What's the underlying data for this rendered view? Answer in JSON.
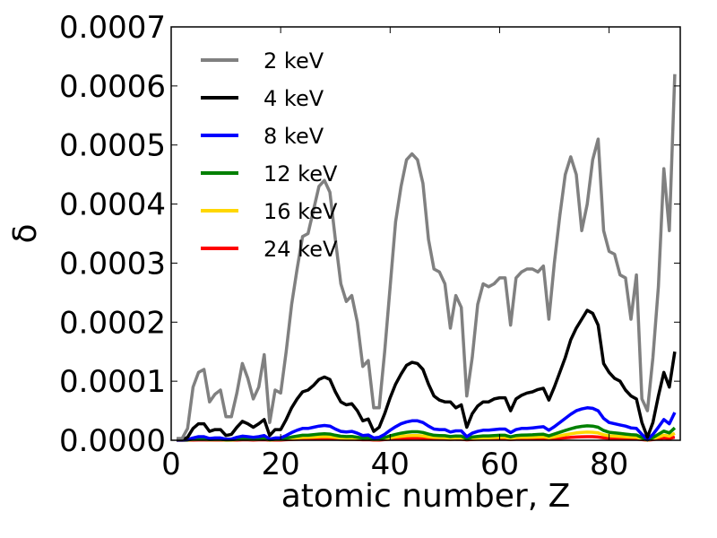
{
  "chart_data": {
    "type": "line",
    "xlabel": "atomic number, Z",
    "ylabel": "δ",
    "xlim": [
      0,
      93
    ],
    "ylim": [
      0,
      0.0007
    ],
    "x_ticks": [
      0,
      20,
      40,
      60,
      80
    ],
    "x_tick_labels": [
      "0",
      "20",
      "40",
      "60",
      "80"
    ],
    "y_ticks": [
      0,
      0.0001,
      0.0002,
      0.0003,
      0.0004,
      0.0005,
      0.0006,
      0.0007
    ],
    "y_tick_labels": [
      "0.0000",
      "0.0001",
      "0.0002",
      "0.0003",
      "0.0004",
      "0.0005",
      "0.0006",
      "0.0007"
    ],
    "grid": false,
    "legend_position": "top-left",
    "x": [
      1,
      2,
      3,
      4,
      5,
      6,
      7,
      8,
      9,
      10,
      11,
      12,
      13,
      14,
      15,
      16,
      17,
      18,
      19,
      20,
      21,
      22,
      23,
      24,
      25,
      26,
      27,
      28,
      29,
      30,
      31,
      32,
      33,
      34,
      35,
      36,
      37,
      38,
      39,
      40,
      41,
      42,
      43,
      44,
      45,
      46,
      47,
      48,
      49,
      50,
      51,
      52,
      53,
      54,
      55,
      56,
      57,
      58,
      59,
      60,
      61,
      62,
      63,
      64,
      65,
      66,
      67,
      68,
      69,
      70,
      71,
      72,
      73,
      74,
      75,
      76,
      77,
      78,
      79,
      80,
      81,
      82,
      83,
      84,
      85,
      86,
      87,
      88,
      89,
      90,
      91,
      92
    ],
    "series": [
      {
        "name": "2 keV",
        "color": "#808080",
        "values": [
          3e-06,
          3e-06,
          2e-05,
          9e-05,
          0.000115,
          0.00012,
          6.5e-05,
          7.8e-05,
          8.5e-05,
          4e-05,
          4e-05,
          8e-05,
          0.00013,
          0.000105,
          7e-05,
          9e-05,
          0.000145,
          3e-05,
          8.5e-05,
          8e-05,
          0.00015,
          0.00023,
          0.00029,
          0.000345,
          0.00035,
          0.00039,
          0.00043,
          0.00044,
          0.00042,
          0.00034,
          0.000265,
          0.000235,
          0.000245,
          0.0002,
          0.000125,
          0.000135,
          5.5e-05,
          5.5e-05,
          0.00015,
          0.00026,
          0.00037,
          0.00043,
          0.000475,
          0.000485,
          0.000475,
          0.000435,
          0.00034,
          0.00029,
          0.000285,
          0.000265,
          0.00019,
          0.000245,
          0.000225,
          7.5e-05,
          0.00014,
          0.00023,
          0.000265,
          0.00026,
          0.000265,
          0.000275,
          0.000275,
          0.000195,
          0.000275,
          0.000285,
          0.00029,
          0.00029,
          0.000285,
          0.000295,
          0.000205,
          0.0003,
          0.00038,
          0.00045,
          0.00048,
          0.00045,
          0.000355,
          0.0004,
          0.000475,
          0.00051,
          0.000355,
          0.00032,
          0.000315,
          0.00028,
          0.000275,
          0.000205,
          0.00028,
          7e-05,
          5e-05,
          0.00014,
          0.00026,
          0.00046,
          0.000355,
          0.00062
        ]
      },
      {
        "name": "4 keV",
        "color": "#000000",
        "values": [
          1e-06,
          1e-06,
          5e-06,
          2e-05,
          2.8e-05,
          2.8e-05,
          1.5e-05,
          1.8e-05,
          1.8e-05,
          8e-06,
          1e-05,
          2.2e-05,
          3.2e-05,
          2.8e-05,
          2.2e-05,
          2.8e-05,
          3.5e-05,
          8e-06,
          1.8e-05,
          1.8e-05,
          3.5e-05,
          5.5e-05,
          7e-05,
          8.2e-05,
          8.5e-05,
          9.3e-05,
          0.000103,
          0.000107,
          0.000103,
          8.2e-05,
          6.5e-05,
          6e-05,
          6.2e-05,
          5e-05,
          3.3e-05,
          3.6e-05,
          1.5e-05,
          2.2e-05,
          4.5e-05,
          7.2e-05,
          9.5e-05,
          0.000112,
          0.000127,
          0.000132,
          0.00013,
          0.00012,
          9.5e-05,
          7.5e-05,
          6.8e-05,
          6.5e-05,
          6.5e-05,
          5.5e-05,
          6e-05,
          2.2e-05,
          4.5e-05,
          5.8e-05,
          6.5e-05,
          6.5e-05,
          7e-05,
          7.2e-05,
          7.2e-05,
          5e-05,
          7e-05,
          7.6e-05,
          8e-05,
          8.2e-05,
          8.6e-05,
          8.8e-05,
          6.8e-05,
          9e-05,
          0.000115,
          0.00014,
          0.00017,
          0.00019,
          0.000205,
          0.00022,
          0.000215,
          0.000195,
          0.00013,
          0.000115,
          0.000105,
          0.0001,
          8.5e-05,
          7.5e-05,
          7e-05,
          3e-05,
          5e-06,
          3e-05,
          7.5e-05,
          0.000115,
          9e-05,
          0.00015
        ]
      },
      {
        "name": "8 keV",
        "color": "#0000ff",
        "values": [
          3e-07,
          3e-07,
          1e-06,
          4e-06,
          6e-06,
          6e-06,
          3e-06,
          4e-06,
          4e-06,
          2e-06,
          2e-06,
          5e-06,
          7e-06,
          6e-06,
          5e-06,
          6e-06,
          8e-06,
          2e-06,
          4e-06,
          4e-06,
          8e-06,
          1.3e-05,
          1.7e-05,
          2e-05,
          2e-05,
          2.2e-05,
          2.4e-05,
          2.5e-05,
          2.4e-05,
          1.9e-05,
          1.5e-05,
          1.4e-05,
          1.5e-05,
          1.2e-05,
          8e-06,
          9e-06,
          4e-06,
          5e-06,
          1e-05,
          1.7e-05,
          2.3e-05,
          2.8e-05,
          3.1e-05,
          3.3e-05,
          3.3e-05,
          3e-05,
          2.4e-05,
          1.9e-05,
          1.8e-05,
          1.8e-05,
          1.4e-05,
          1.6e-05,
          1.6e-05,
          6e-06,
          1.2e-05,
          1.5e-05,
          1.7e-05,
          1.7e-05,
          1.8e-05,
          1.9e-05,
          1.9e-05,
          1.3e-05,
          1.8e-05,
          2e-05,
          2e-05,
          2.1e-05,
          2.2e-05,
          2.3e-05,
          1.7e-05,
          2.3e-05,
          3e-05,
          3.7e-05,
          4.4e-05,
          5e-05,
          5.3e-05,
          5.5e-05,
          5.4e-05,
          5e-05,
          3.7e-05,
          3e-05,
          2.8e-05,
          2.6e-05,
          2.4e-05,
          2.1e-05,
          2e-05,
          1e-05,
          1e-06,
          1e-05,
          2.2e-05,
          3.5e-05,
          2.8e-05,
          4.7e-05
        ]
      },
      {
        "name": "12 keV",
        "color": "#008000",
        "values": [
          1e-07,
          1e-07,
          5e-07,
          2e-06,
          2.5e-06,
          2.5e-06,
          1.3e-06,
          1.7e-06,
          1.7e-06,
          8e-07,
          9e-07,
          2e-06,
          3e-06,
          2.7e-06,
          2e-06,
          2.7e-06,
          3.5e-06,
          8e-07,
          1.8e-06,
          1.8e-06,
          3.5e-06,
          5.5e-06,
          7e-06,
          8.5e-06,
          8.5e-06,
          9.5e-06,
          1.05e-05,
          1.1e-05,
          1.05e-05,
          8.5e-06,
          6.8e-06,
          6.2e-06,
          6.5e-06,
          5.2e-06,
          3.6e-06,
          4e-06,
          1.7e-06,
          2.2e-06,
          4.5e-06,
          7.5e-06,
          1e-05,
          1.2e-05,
          1.35e-05,
          1.45e-05,
          1.45e-05,
          1.32e-05,
          1.05e-05,
          8.5e-06,
          8e-06,
          7.8e-06,
          6.2e-06,
          7.2e-06,
          7e-06,
          2.6e-06,
          5.5e-06,
          6.5e-06,
          7.5e-06,
          7.5e-06,
          8e-06,
          8.5e-06,
          8.5e-06,
          5.8e-06,
          8e-06,
          8.8e-06,
          9e-06,
          9.3e-06,
          9.8e-06,
          1.02e-05,
          7.5e-06,
          1.05e-05,
          1.35e-05,
          1.65e-05,
          1.95e-05,
          2.2e-05,
          2.35e-05,
          2.45e-05,
          2.4e-05,
          2.2e-05,
          1.65e-05,
          1.35e-05,
          1.25e-05,
          1.15e-05,
          1.05e-05,
          9.5e-06,
          9e-06,
          4.5e-06,
          5e-07,
          4.5e-06,
          1e-05,
          1.55e-05,
          1.25e-05,
          2.1e-05
        ]
      },
      {
        "name": "16 keV",
        "color": "#ffd700",
        "values": [
          5e-08,
          5e-08,
          3e-07,
          1.1e-06,
          1.4e-06,
          1.4e-06,
          7e-07,
          9e-07,
          9e-07,
          4e-07,
          5e-07,
          1.1e-06,
          1.7e-06,
          1.5e-06,
          1.1e-06,
          1.5e-06,
          2e-06,
          4e-07,
          1e-06,
          1e-06,
          2e-06,
          3.1e-06,
          3.9e-06,
          4.7e-06,
          4.8e-06,
          5.3e-06,
          5.9e-06,
          6.2e-06,
          5.9e-06,
          4.8e-06,
          3.8e-06,
          3.5e-06,
          3.6e-06,
          2.9e-06,
          2e-06,
          2.2e-06,
          9e-07,
          1.2e-06,
          2.5e-06,
          4.2e-06,
          5.6e-06,
          6.7e-06,
          7.6e-06,
          8.1e-06,
          8.1e-06,
          7.4e-06,
          5.9e-06,
          4.8e-06,
          4.5e-06,
          4.4e-06,
          3.5e-06,
          4e-06,
          3.9e-06,
          1.5e-06,
          3.1e-06,
          3.6e-06,
          4.2e-06,
          4.2e-06,
          4.5e-06,
          4.8e-06,
          4.8e-06,
          3.2e-06,
          4.5e-06,
          4.9e-06,
          5e-06,
          5.2e-06,
          5.5e-06,
          5.7e-06,
          4.2e-06,
          5.9e-06,
          7.6e-06,
          9.3e-06,
          1.1e-05,
          1.24e-05,
          1.32e-05,
          1.38e-05,
          1.35e-05,
          1.24e-05,
          9.3e-06,
          7.6e-06,
          7e-06,
          6.5e-06,
          5.9e-06,
          5.3e-06,
          5e-06,
          2.5e-06,
          3e-07,
          2.5e-06,
          5.6e-06,
          8.7e-06,
          7e-06,
          1.18e-05
        ]
      },
      {
        "name": "24 keV",
        "color": "#ff0000",
        "values": [
          2e-08,
          2e-08,
          1e-07,
          5e-07,
          6e-07,
          6e-07,
          3e-07,
          4e-07,
          4e-07,
          2e-07,
          2e-07,
          5e-07,
          8e-07,
          7e-07,
          5e-07,
          7e-07,
          9e-07,
          2e-07,
          4e-07,
          4e-07,
          9e-07,
          1.4e-06,
          1.7e-06,
          2.1e-06,
          2.1e-06,
          2.4e-06,
          2.6e-06,
          2.7e-06,
          2.6e-06,
          2.1e-06,
          1.7e-06,
          1.5e-06,
          1.6e-06,
          1.3e-06,
          9e-07,
          1e-06,
          4e-07,
          5e-07,
          1.1e-06,
          1.9e-06,
          2.5e-06,
          3e-06,
          3.4e-06,
          3.6e-06,
          3.6e-06,
          3.3e-06,
          2.6e-06,
          2.1e-06,
          2e-06,
          1.9e-06,
          1.5e-06,
          1.8e-06,
          1.7e-06,
          7e-07,
          1.4e-06,
          1.6e-06,
          1.9e-06,
          1.9e-06,
          2e-06,
          2.1e-06,
          2.1e-06,
          1.4e-06,
          2e-06,
          2.2e-06,
          2.2e-06,
          2.3e-06,
          2.4e-06,
          2.5e-06,
          1.9e-06,
          2.6e-06,
          3.4e-06,
          4.1e-06,
          4.9e-06,
          5.5e-06,
          5.9e-06,
          6.1e-06,
          6e-06,
          5.5e-06,
          4.1e-06,
          3.4e-06,
          3.1e-06,
          2.9e-06,
          2.6e-06,
          2.4e-06,
          2.2e-06,
          1.1e-06,
          1e-07,
          1.1e-06,
          2.5e-06,
          3.9e-06,
          3.1e-06,
          5.2e-06
        ]
      }
    ]
  }
}
